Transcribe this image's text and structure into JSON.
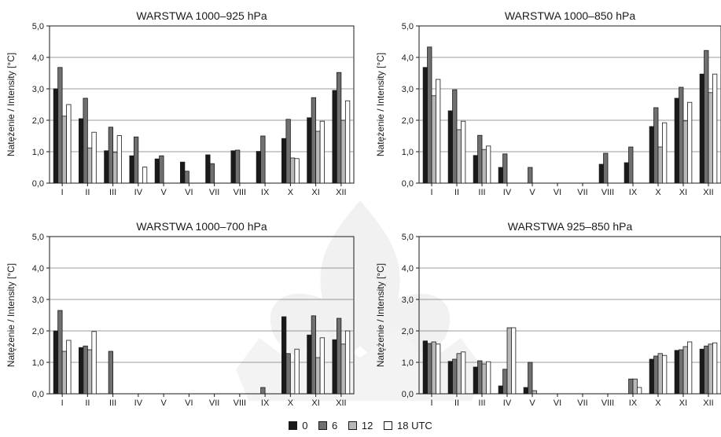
{
  "colors": {
    "s0": "#1a1a1a",
    "s6": "#707070",
    "s12": "#b8b8b8",
    "s18": "#ffffff",
    "axis": "#1a1a1a",
    "grid": "#7a7a7a",
    "watermark": "#f0f0f0"
  },
  "legend": {
    "labels": [
      "0",
      "6",
      "12",
      "18 UTC"
    ]
  },
  "chart_data": [
    {
      "type": "bar",
      "title": "WARSTWA 1000–925 hPa",
      "ylabel": "Natężenie / Intensity [°C]",
      "xlabel": "",
      "ylim": [
        0,
        5
      ],
      "yticks": [
        "0,0",
        "1,0",
        "2,0",
        "3,0",
        "4,0",
        "5,0"
      ],
      "grid": true,
      "categories": [
        "I",
        "II",
        "III",
        "IV",
        "V",
        "VI",
        "VII",
        "VIII",
        "IX",
        "X",
        "XI",
        "XII"
      ],
      "series": [
        {
          "name": "0",
          "values": [
            3.0,
            2.05,
            1.03,
            0.87,
            0.77,
            0.67,
            0.9,
            1.03,
            1.01,
            1.42,
            2.08,
            2.95
          ]
        },
        {
          "name": "6",
          "values": [
            3.68,
            2.7,
            1.78,
            1.47,
            0.87,
            0.38,
            0.62,
            1.05,
            1.5,
            2.03,
            2.72,
            3.52
          ]
        },
        {
          "name": "12",
          "values": [
            2.13,
            1.12,
            0.98,
            0,
            0,
            0,
            0,
            0,
            0,
            0.8,
            1.65,
            2.0
          ]
        },
        {
          "name": "18 UTC",
          "values": [
            2.5,
            1.62,
            1.51,
            0.51,
            0,
            0,
            0,
            0,
            0,
            0.78,
            1.97,
            2.62
          ]
        }
      ]
    },
    {
      "type": "bar",
      "title": "WARSTWA 1000–850 hPa",
      "ylabel": "Natężenie / Intensity [°C]",
      "xlabel": "",
      "ylim": [
        0,
        5
      ],
      "yticks": [
        "0,0",
        "1,0",
        "2,0",
        "3,0",
        "4,0",
        "5,0"
      ],
      "grid": true,
      "categories": [
        "I",
        "II",
        "III",
        "IV",
        "V",
        "VI",
        "VII",
        "VIII",
        "IX",
        "X",
        "XI",
        "XII"
      ],
      "series": [
        {
          "name": "0",
          "values": [
            3.68,
            2.3,
            0.88,
            0.5,
            0,
            0,
            0,
            0.6,
            0.65,
            1.8,
            2.7,
            3.47
          ]
        },
        {
          "name": "6",
          "values": [
            4.33,
            2.97,
            1.52,
            0.93,
            0.5,
            0,
            0,
            0.95,
            1.15,
            2.4,
            3.05,
            4.22
          ]
        },
        {
          "name": "12",
          "values": [
            2.78,
            1.7,
            1.07,
            0,
            0,
            0,
            0,
            0,
            0,
            1.15,
            1.98,
            2.88
          ]
        },
        {
          "name": "18 UTC",
          "values": [
            3.3,
            1.97,
            1.18,
            0,
            0,
            0,
            0,
            0,
            0,
            1.92,
            2.57,
            3.47
          ]
        }
      ]
    },
    {
      "type": "bar",
      "title": "WARSTWA 1000–700 hPa",
      "ylabel": "Natężenie / Intensity [°C]",
      "xlabel": "",
      "ylim": [
        0,
        5
      ],
      "yticks": [
        "0,0",
        "1,0",
        "2,0",
        "3,0",
        "4,0",
        "5,0"
      ],
      "grid": true,
      "categories": [
        "I",
        "II",
        "III",
        "IV",
        "V",
        "VI",
        "VII",
        "VIII",
        "IX",
        "X",
        "XI",
        "XII"
      ],
      "series": [
        {
          "name": "0",
          "values": [
            2.0,
            1.47,
            0,
            0,
            0,
            0,
            0,
            0,
            0,
            2.45,
            1.87,
            1.72
          ]
        },
        {
          "name": "6",
          "values": [
            2.65,
            1.52,
            1.35,
            0,
            0,
            0,
            0,
            0,
            0.2,
            1.28,
            2.48,
            2.4
          ]
        },
        {
          "name": "12",
          "values": [
            1.35,
            1.4,
            0,
            0,
            0,
            0,
            0,
            0,
            0,
            0,
            1.15,
            1.58
          ]
        },
        {
          "name": "18 UTC",
          "values": [
            1.7,
            1.98,
            0,
            0,
            0,
            0,
            0,
            0,
            0,
            1.42,
            1.78,
            2.0
          ]
        }
      ]
    },
    {
      "type": "bar",
      "title": "WARSTWA 925–850 hPa",
      "ylabel": "Natężenie / Intensity [°C]",
      "xlabel": "",
      "ylim": [
        0,
        5
      ],
      "yticks": [
        "0,0",
        "1,0",
        "2,0",
        "3,0",
        "4,0",
        "5,0"
      ],
      "grid": true,
      "categories": [
        "I",
        "II",
        "III",
        "IV",
        "V",
        "VI",
        "VII",
        "VIII",
        "IX",
        "X",
        "XI",
        "XII"
      ],
      "series": [
        {
          "name": "0",
          "values": [
            1.68,
            1.03,
            0.85,
            0.25,
            0.2,
            0,
            0,
            0,
            0,
            1.1,
            1.38,
            1.42
          ]
        },
        {
          "name": "6",
          "values": [
            1.6,
            1.1,
            1.05,
            0.78,
            1.0,
            0,
            0,
            0,
            0.47,
            1.2,
            1.4,
            1.52
          ]
        },
        {
          "name": "12",
          "values": [
            1.65,
            1.28,
            0.95,
            2.1,
            0.1,
            0,
            0,
            0,
            0.47,
            1.28,
            1.5,
            1.58
          ]
        },
        {
          "name": "18 UTC",
          "values": [
            1.58,
            1.33,
            1.02,
            2.1,
            0,
            0,
            0,
            0,
            0.2,
            1.22,
            1.65,
            1.62
          ]
        }
      ]
    }
  ]
}
